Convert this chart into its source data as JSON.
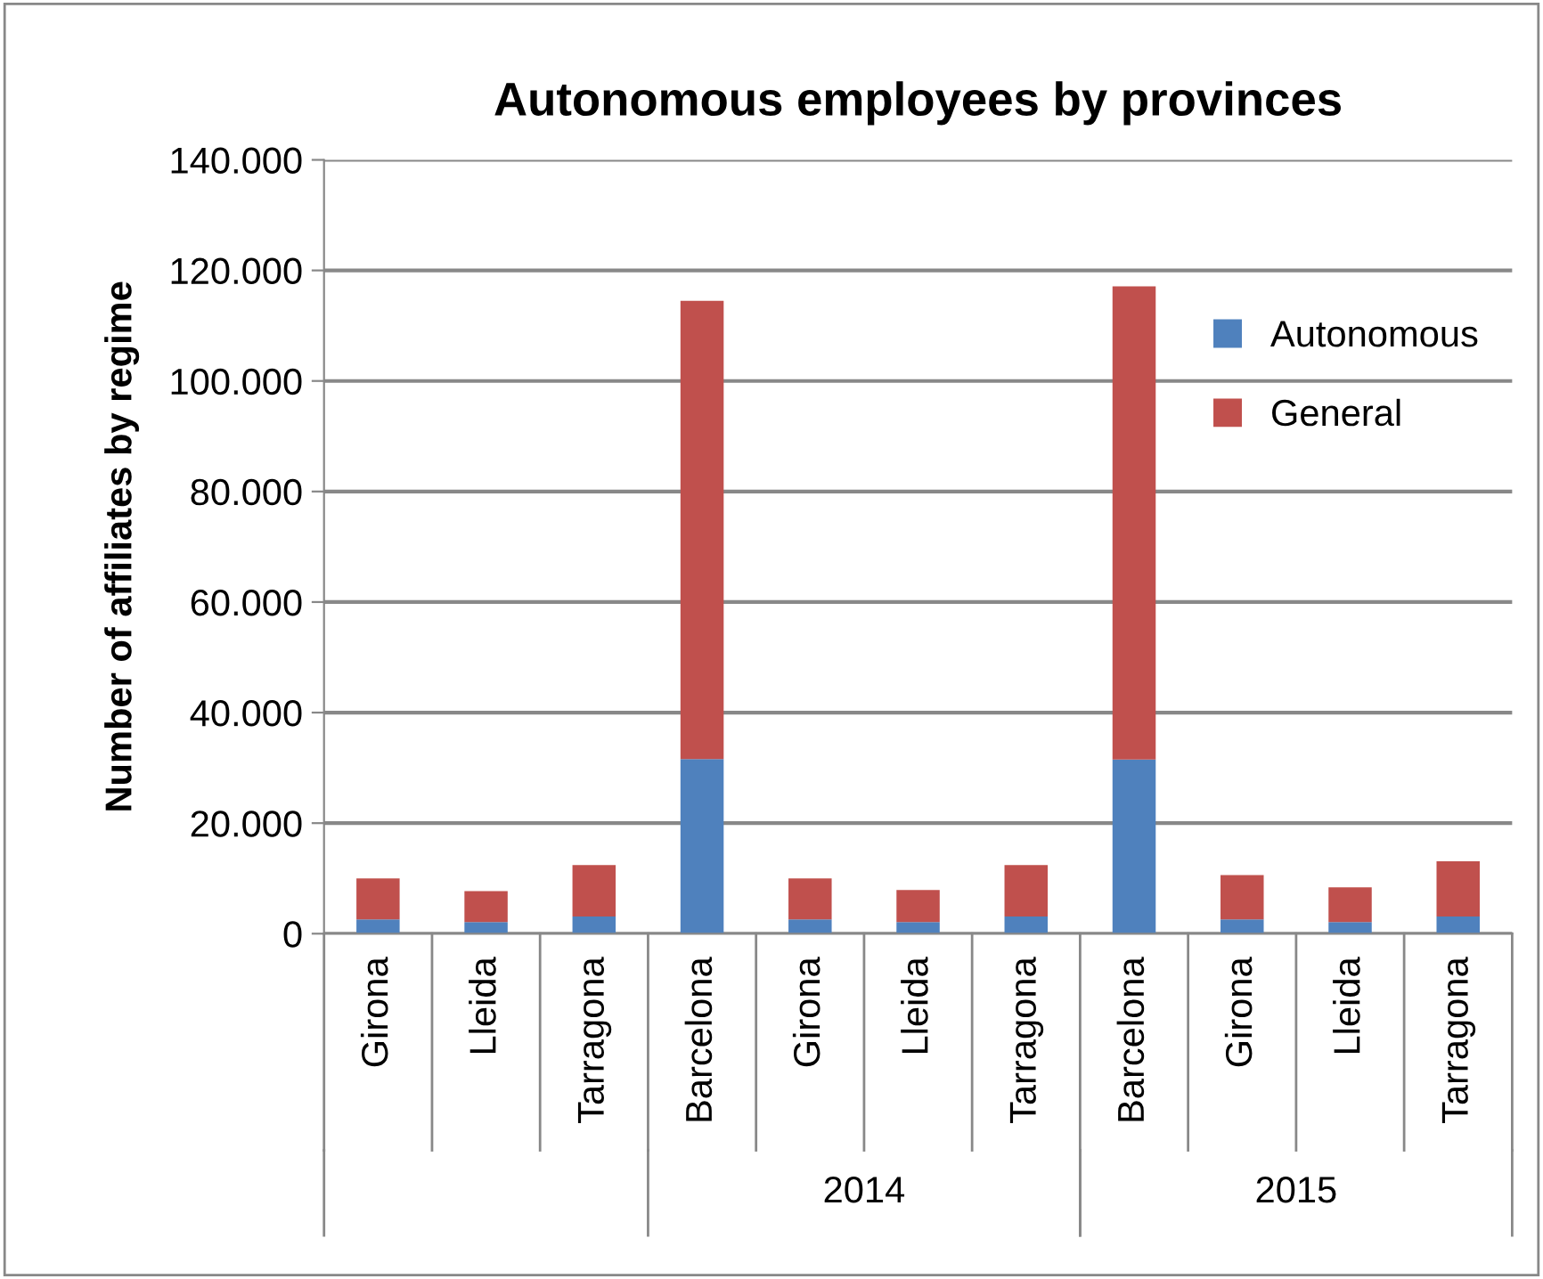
{
  "chart_data": {
    "type": "bar",
    "title": "Autonomous employees by provinces",
    "ylabel": "Number of affiliates by regime",
    "categories": [
      "Girona",
      "Lleida",
      "Tarragona",
      "Barcelona",
      "Girona",
      "Lleida",
      "Tarragona",
      "Barcelona",
      "Girona",
      "Lleida",
      "Tarragona"
    ],
    "stacked": true,
    "series": [
      {
        "name": "Autonomous",
        "color": "#4f81bd",
        "values": [
          2600,
          2100,
          3100,
          31600,
          2600,
          2100,
          3100,
          31500,
          2600,
          2100,
          3100
        ]
      },
      {
        "name": "General",
        "color": "#c0504d",
        "values": [
          7400,
          5600,
          9300,
          82900,
          7400,
          5800,
          9300,
          85600,
          8000,
          6300,
          10000
        ]
      }
    ],
    "ylim": [
      0,
      140000
    ],
    "yticks": [
      0,
      {
        "value": 20000,
        "label": "20.000"
      },
      {
        "value": 40000,
        "label": "40.000"
      },
      {
        "value": 60000,
        "label": "60.000"
      },
      {
        "value": 80000,
        "label": "80.000"
      },
      {
        "value": 100000,
        "label": "100.000"
      },
      {
        "value": 120000,
        "label": "120.000"
      },
      {
        "value": 140000,
        "label": "140.000"
      }
    ],
    "annotations": [
      "2014",
      "2015"
    ],
    "grid": "y",
    "legend": "right"
  }
}
